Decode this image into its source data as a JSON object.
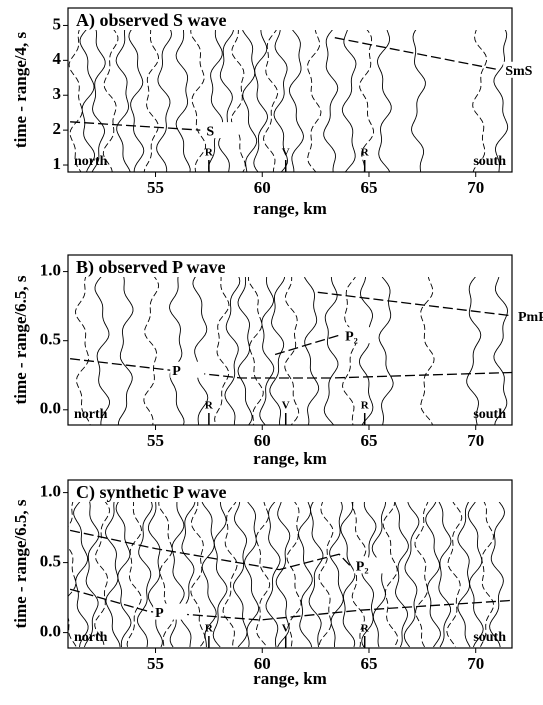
{
  "chart_data": [
    {
      "type": "seismogram",
      "title": "A) observed S wave",
      "x_label": "range, km",
      "y_label": "time - range/4, s",
      "xlim": [
        50.9,
        71.7
      ],
      "ylim": [
        0.8,
        5.5
      ],
      "xticks": [
        55,
        60,
        65,
        70
      ],
      "yticks": [
        1,
        2,
        3,
        4,
        5
      ],
      "trace_ranges": [
        51.3,
        51.8,
        52.3,
        52.9,
        53.5,
        54.1,
        54.8,
        55.4,
        56.3,
        57.0,
        57.8,
        58.3,
        58.9,
        59.4,
        59.9,
        60.4,
        60.9,
        61.6,
        62.4,
        63.2,
        64.1,
        64.9,
        65.7,
        67.3,
        70.2,
        71.2
      ],
      "series": [
        {
          "name": "SmS",
          "x": [
            63.4,
            71.1
          ],
          "values": [
            4.65,
            3.73
          ]
        },
        {
          "name": "S",
          "x": [
            51.0,
            57.1
          ],
          "values": [
            2.24,
            2.0
          ]
        }
      ],
      "annotations": [
        "north",
        "south"
      ],
      "markers": [
        {
          "label": "R",
          "x": 57.5
        },
        {
          "label": "V",
          "x": 61.1
        },
        {
          "label": "R",
          "x": 64.8
        }
      ]
    },
    {
      "type": "seismogram",
      "title": "B) observed P wave",
      "x_label": "range, km",
      "y_label": "time - range/6.5, s",
      "xlim": [
        50.9,
        71.7
      ],
      "ylim": [
        -0.11,
        1.12
      ],
      "xticks": [
        55,
        60,
        65,
        70
      ],
      "yticks": [
        {
          "value": 0,
          "label": "0.0"
        },
        {
          "value": 0.5,
          "label": "0.5"
        },
        {
          "value": 1,
          "label": "1.0"
        }
      ],
      "trace_ranges": [
        51.6,
        52.5,
        53.6,
        54.8,
        56.0,
        57.1,
        58.1,
        58.6,
        59.2,
        59.7,
        60.2,
        60.7,
        61.4,
        62.3,
        63.2,
        64.1,
        64.9,
        65.8,
        67.7,
        69.9,
        71.2
      ],
      "series": [
        {
          "name": "PmP",
          "x": [
            62.6,
            71.7
          ],
          "values": [
            0.85,
            0.68
          ]
        },
        {
          "name": "P₂",
          "x": [
            60.6,
            63.6
          ],
          "values": [
            0.4,
            0.54
          ]
        },
        {
          "name": "P",
          "x": [
            51.0,
            55.5,
            59.0,
            63.2,
            67.4,
            71.7
          ],
          "values": [
            0.37,
            0.29,
            0.23,
            0.23,
            0.25,
            0.27
          ]
        }
      ],
      "annotations": [
        "north",
        "south"
      ],
      "markers": [
        {
          "label": "R",
          "x": 57.5
        },
        {
          "label": "V",
          "x": 61.1
        },
        {
          "label": "R",
          "x": 64.8
        }
      ]
    },
    {
      "type": "seismogram",
      "title": "C) synthetic P wave",
      "x_label": "range, km",
      "y_label": "time - range/6.5, s",
      "xlim": [
        50.9,
        71.7
      ],
      "ylim": [
        -0.11,
        1.09
      ],
      "xticks": [
        55,
        60,
        65,
        70
      ],
      "yticks": [
        {
          "value": 0,
          "label": "0.0"
        },
        {
          "value": 0.5,
          "label": "0.5"
        },
        {
          "value": 1,
          "label": "1.0"
        }
      ],
      "trace_ranges": [
        51.0,
        51.5,
        52.0,
        52.5,
        53.0,
        53.5,
        54.0,
        54.5,
        55.0,
        55.5,
        56.0,
        56.5,
        57.0,
        57.5,
        58.0,
        58.5,
        59.0,
        59.5,
        60.0,
        60.5,
        61.0,
        61.5,
        62.0,
        62.5,
        63.0,
        63.5,
        64.0,
        64.5,
        65.0,
        65.5,
        66.0,
        66.5,
        67.0,
        67.5,
        68.0,
        68.5,
        69.0,
        69.5,
        70.0,
        70.5,
        71.0
      ],
      "series": [
        {
          "name": "P₂",
          "x": [
            51.0,
            55.0,
            60.8,
            63.6,
            64.1
          ],
          "values": [
            0.73,
            0.6,
            0.45,
            0.56,
            0.48
          ]
        },
        {
          "name": "P",
          "x": [
            51.0,
            54.7,
            59.9,
            64.6,
            71.7
          ],
          "values": [
            0.31,
            0.15,
            0.09,
            0.16,
            0.23
          ]
        }
      ],
      "annotations": [
        "north",
        "south"
      ],
      "markers": [
        {
          "label": "R",
          "x": 57.5
        },
        {
          "label": "V",
          "x": 61.1
        },
        {
          "label": "R",
          "x": 64.8
        }
      ]
    }
  ]
}
